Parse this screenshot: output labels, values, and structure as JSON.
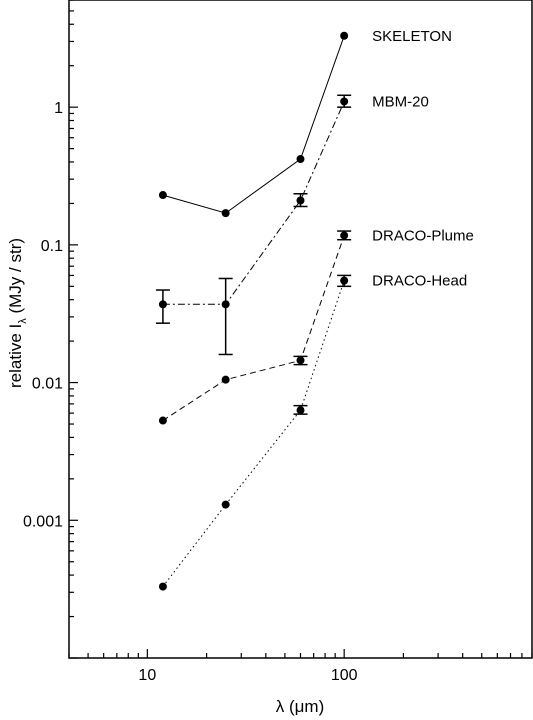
{
  "chart_data": {
    "type": "line",
    "title": "",
    "xlabel": "λ (μm)",
    "ylabel_main": "relative I",
    "ylabel_sub": "λ",
    "ylabel_tail": " (MJy / str)",
    "x_scale": "log",
    "y_scale": "log",
    "xlim": [
      4,
      900
    ],
    "ylim": [
      0.0001,
      6
    ],
    "grid": false,
    "legend": "labels next to last points (right)",
    "x_ticks": [
      {
        "value": 10,
        "label": "10"
      },
      {
        "value": 100,
        "label": "100"
      }
    ],
    "y_ticks": [
      {
        "value": 0.001,
        "label": "0.001"
      },
      {
        "value": 0.01,
        "label": "0.01"
      },
      {
        "value": 0.1,
        "label": "0.1"
      },
      {
        "value": 1,
        "label": "1"
      }
    ],
    "series": [
      {
        "name": "SKELETON",
        "dash": "solid",
        "points": [
          {
            "x": 12,
            "y": 0.23
          },
          {
            "x": 25,
            "y": 0.17
          },
          {
            "x": 60,
            "y": 0.42
          },
          {
            "x": 100,
            "y": 3.3
          }
        ]
      },
      {
        "name": "MBM-20",
        "dash": "dashdot",
        "points": [
          {
            "x": 12,
            "y": 0.037,
            "err_lo": 0.027,
            "err_hi": 0.047
          },
          {
            "x": 25,
            "y": 0.037,
            "err_lo": 0.016,
            "err_hi": 0.057
          },
          {
            "x": 60,
            "y": 0.21,
            "err_lo": 0.19,
            "err_hi": 0.235
          },
          {
            "x": 100,
            "y": 1.1,
            "err_lo": 1.0,
            "err_hi": 1.22
          }
        ]
      },
      {
        "name": "DRACO-Plume",
        "dash": "dashed",
        "points": [
          {
            "x": 12,
            "y": 0.0053
          },
          {
            "x": 25,
            "y": 0.0105
          },
          {
            "x": 60,
            "y": 0.0145,
            "err_lo": 0.0135,
            "err_hi": 0.0155
          },
          {
            "x": 100,
            "y": 0.117,
            "err_lo": 0.109,
            "err_hi": 0.126
          }
        ]
      },
      {
        "name": "DRACO-Head",
        "dash": "dotted",
        "points": [
          {
            "x": 12,
            "y": 0.00033
          },
          {
            "x": 25,
            "y": 0.0013
          },
          {
            "x": 60,
            "y": 0.0063,
            "err_lo": 0.0059,
            "err_hi": 0.0068
          },
          {
            "x": 100,
            "y": 0.055,
            "err_lo": 0.05,
            "err_hi": 0.06
          }
        ]
      }
    ]
  }
}
